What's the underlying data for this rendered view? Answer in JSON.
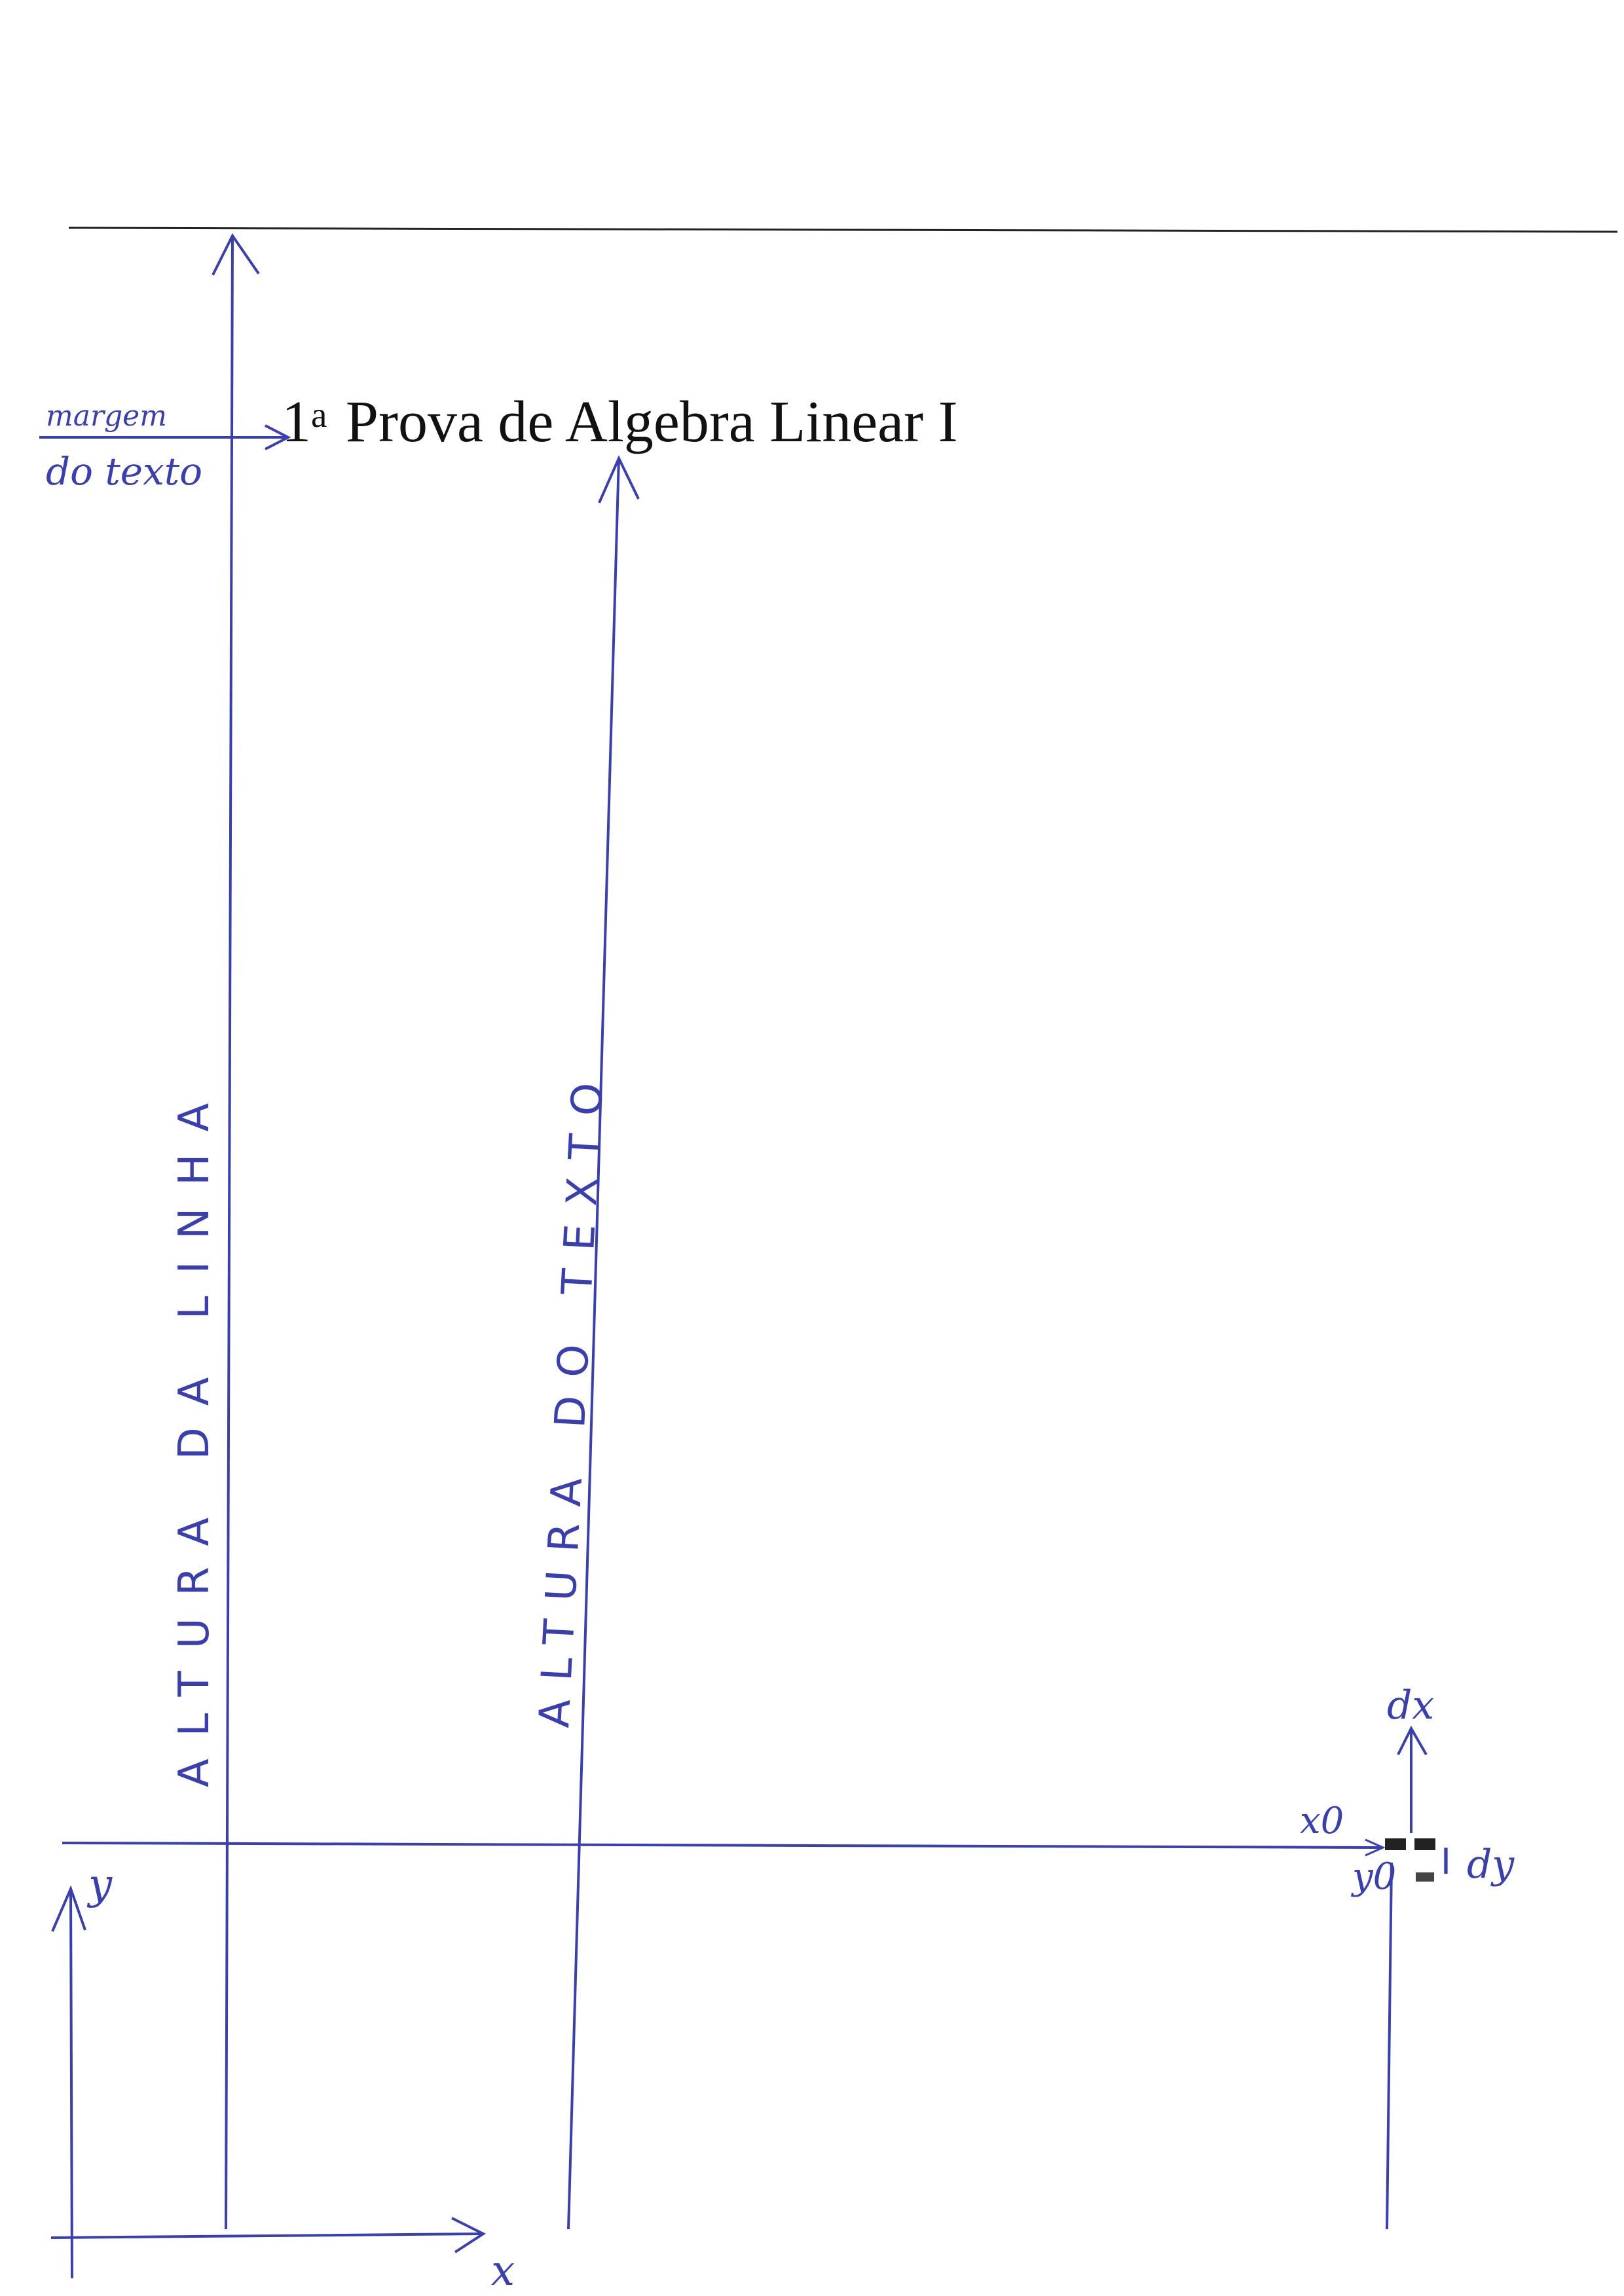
{
  "document": {
    "title_number": "1",
    "title_superscript": "a",
    "title_text": "Prova de Algebra Linear I"
  },
  "annotations": {
    "margin_label_top": "margem",
    "margin_label_bottom": "do texto",
    "line_height_label": "ALTURA DA LINHA",
    "text_height_label": "ALTURA DO TEXTO",
    "axis_x": "x",
    "axis_y": "y",
    "x0_label": "x0",
    "y0_label": "y0",
    "dx_label": "dx",
    "dy_label": "dy",
    "i_label": "I"
  },
  "colors": {
    "ink": "#3a3fb0",
    "text": "#111111",
    "rule": "#222222"
  }
}
